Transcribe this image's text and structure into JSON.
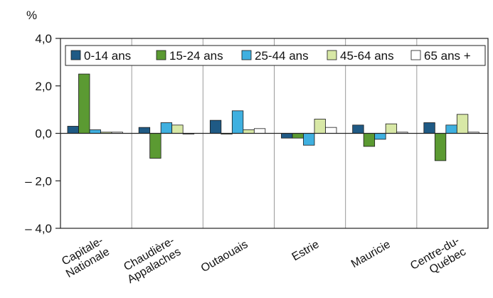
{
  "chart_data": {
    "type": "bar",
    "unit_label": "%",
    "categories": [
      [
        "Capitale-",
        "Nationale"
      ],
      [
        "Chaudière-",
        "Appalaches"
      ],
      [
        "Outaouais"
      ],
      [
        "Estrie"
      ],
      [
        "Mauricie"
      ],
      [
        "Centre-du-",
        "Québec"
      ]
    ],
    "series": [
      {
        "name": "0-14 ans",
        "color": "#1f5a85",
        "values": [
          0.3,
          0.25,
          0.55,
          -0.2,
          0.35,
          0.45
        ]
      },
      {
        "name": "15-24 ans",
        "color": "#5b9a32",
        "values": [
          2.5,
          -1.05,
          0.0,
          -0.2,
          -0.55,
          -1.15
        ]
      },
      {
        "name": "25-44 ans",
        "color": "#3fb0e0",
        "values": [
          0.15,
          0.45,
          0.95,
          -0.5,
          -0.25,
          0.35
        ]
      },
      {
        "name": "45-64 ans",
        "color": "#d8e8a6",
        "values": [
          0.05,
          0.35,
          0.15,
          0.6,
          0.4,
          0.8
        ]
      },
      {
        "name": "65 ans +",
        "color": "#ffffff",
        "values": [
          0.05,
          0.0,
          0.2,
          0.25,
          0.05,
          0.05
        ]
      }
    ],
    "ylim": [
      -4.0,
      4.0
    ],
    "yticks": [
      {
        "value": 4.0,
        "label": "4,0"
      },
      {
        "value": 2.0,
        "label": "2,0"
      },
      {
        "value": 0.0,
        "label": "0,0"
      },
      {
        "value": -2.0,
        "label": "– 2,0"
      },
      {
        "value": -4.0,
        "label": "– 4,0"
      }
    ],
    "legend_position": "top",
    "grid": "vertical category separators"
  }
}
